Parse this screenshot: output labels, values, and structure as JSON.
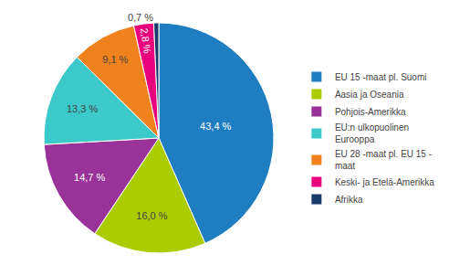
{
  "chart_data": {
    "type": "pie",
    "categories": [
      "EU 15 -maat pl. Suomi",
      "Aasia ja Oseania",
      "Pohjois-Amerikka",
      "EU:n ulkopuolinen\nEurooppa",
      "EU 28 -maat pl. EU 15 -\nmaat",
      "Keski- ja Etelä-Amerikka",
      "Afrikka"
    ],
    "values": [
      43.4,
      16.0,
      14.7,
      13.3,
      9.1,
      2.8,
      0.7
    ],
    "value_labels": [
      "43,4 %",
      "16,0 %",
      "14,7 %",
      "13,3 %",
      "9,1 %",
      "2,8 %",
      "0,7 %"
    ],
    "colors": [
      "#1F7EC2",
      "#AACC00",
      "#993399",
      "#3CC9C9",
      "#F0821E",
      "#E8007C",
      "#1A3A6B"
    ],
    "data_labels": true,
    "legend": "right"
  }
}
